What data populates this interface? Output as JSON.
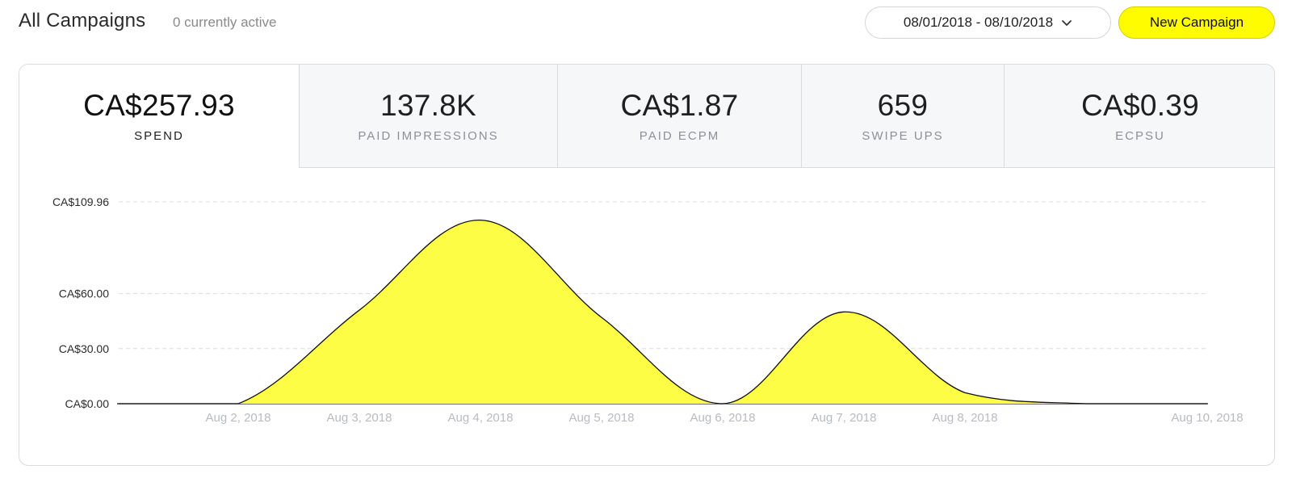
{
  "header": {
    "title": "All Campaigns",
    "active_count": "0 currently active",
    "date_range": "08/01/2018 - 08/10/2018",
    "new_campaign_label": "New Campaign"
  },
  "metrics": [
    {
      "value": "CA$257.93",
      "label": "SPEND",
      "active": true
    },
    {
      "value": "137.8K",
      "label": "PAID IMPRESSIONS",
      "active": false
    },
    {
      "value": "CA$1.87",
      "label": "PAID ECPM",
      "active": false
    },
    {
      "value": "659",
      "label": "SWIPE UPS",
      "active": false
    },
    {
      "value": "CA$0.39",
      "label": "ECPSU",
      "active": false
    }
  ],
  "colors": {
    "accent": "#fffc00",
    "fill": "#fdfd45",
    "line": "#111111",
    "grid": "#dcdcdc"
  },
  "chart_data": {
    "type": "area",
    "ylim": [
      0,
      109.96
    ],
    "yticks": [
      {
        "value": 0,
        "label": "CA$0.00"
      },
      {
        "value": 30,
        "label": "CA$30.00"
      },
      {
        "value": 60,
        "label": "CA$60.00"
      },
      {
        "value": 109.96,
        "label": "CA$109.96"
      }
    ],
    "xticks": [
      "Aug 2, 2018",
      "Aug 3, 2018",
      "Aug 4, 2018",
      "Aug 5, 2018",
      "Aug 6, 2018",
      "Aug 7, 2018",
      "Aug 8, 2018",
      "Aug 10, 2018"
    ],
    "x": [
      "Aug 1, 2018",
      "Aug 2, 2018",
      "Aug 3, 2018",
      "Aug 4, 2018",
      "Aug 5, 2018",
      "Aug 6, 2018",
      "Aug 7, 2018",
      "Aug 8, 2018",
      "Aug 9, 2018",
      "Aug 10, 2018"
    ],
    "series": [
      {
        "values": [
          0,
          0,
          51,
          100,
          47,
          0,
          50,
          6,
          0,
          0
        ]
      }
    ],
    "grid": true
  }
}
